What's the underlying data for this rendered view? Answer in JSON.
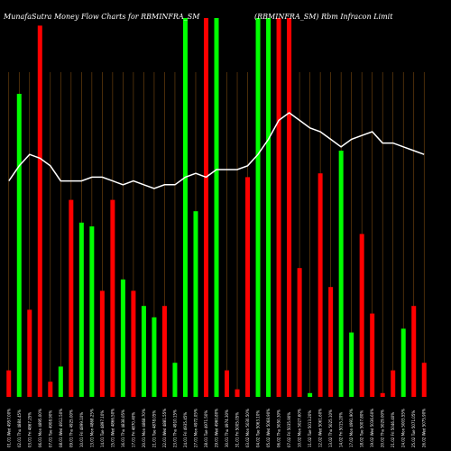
{
  "chart_data": {
    "type": "bar",
    "title": "MunafaSutra  Money Flow  Charts for RBMINFRA_SM",
    "subtitle": "(RBMINFRA_SM)  Rbm Infracon  Limit",
    "xlabel": "",
    "ylabel": "",
    "grid": true,
    "legend": "none",
    "colors": {
      "up": "#00ff00",
      "down": "#ff0000",
      "line": "#ffffff",
      "grid": "#7a4a10",
      "background": "#000000"
    },
    "ylim": [
      0,
      100
    ],
    "categories": [
      "01.01 Wed 4957.00%",
      "02.01 Thu 4884.45%",
      "03.01 Fri 4867.25%",
      "06.01 Mon 4895.00%",
      "07.01 Tue 4908.90%",
      "08.01 Wed 4912.50%",
      "09.01 Thu 4925.00%",
      "10.01 Fri 4899.10%",
      "13.01 Mon 4868.25%",
      "14.01 Tue 4897.10%",
      "15.01 Wed 4866.50%",
      "16.01 Thu 4838.05%",
      "17.01 Fri 4870.40%",
      "20.01 Mon 4868.70%",
      "21.01 Tue 4878.05%",
      "22.01 Wed 4881.55%",
      "23.01 Thu 4910.15%",
      "24.01 Fri 4935.45%",
      "27.01 Mon 4972.05%",
      "28.01 Tue 4971.50%",
      "29.01 Wed 4960.80%",
      "30.01 Thu 4974.30%",
      "31.01 Fri 5005.05%",
      "03.02 Mon 5030.50%",
      "04.02 Tue 5063.10%",
      "05.02 Wed 5068.90%",
      "06.02 Thu 5050.30%",
      "07.02 Fri 5035.90%",
      "10.02 Mon 5027.60%",
      "11.02 Tue 5013.20%",
      "12.02 Wed 5061.60%",
      "13.02 Thu 5025.10%",
      "14.02 Fri 5015.20%",
      "17.02 Mon 4991.90%",
      "18.02 Tue 5007.80%",
      "19.02 Wed 5036.60%",
      "20.02 Thu 5029.00%",
      "21.02 Fri 5046.40%",
      "24.02 Mon 5003.55%",
      "25.02 Tue 5071.05%",
      "26.02 Wed 5075.90%"
    ],
    "series": [
      {
        "values": [
          7,
          80,
          23,
          98,
          4,
          8,
          52,
          46,
          45,
          28,
          52,
          31,
          28,
          24,
          21,
          24,
          9,
          100,
          49,
          100,
          100,
          7,
          2,
          58,
          100,
          100,
          100,
          100,
          34,
          1,
          59,
          29,
          65,
          17,
          43,
          22,
          1,
          7,
          18,
          24,
          9
        ],
        "colors": [
          "down",
          "up",
          "down",
          "down",
          "down",
          "up",
          "down",
          "up",
          "up",
          "down",
          "down",
          "up",
          "down",
          "up",
          "up",
          "down",
          "up",
          "up",
          "up",
          "down",
          "up",
          "down",
          "down",
          "down",
          "up",
          "up",
          "down",
          "down",
          "down",
          "up",
          "down",
          "down",
          "up",
          "up",
          "down",
          "down",
          "down",
          "down",
          "up",
          "down",
          "down"
        ]
      },
      {
        "type": "line",
        "values": [
          57,
          61,
          64,
          63,
          61,
          57,
          57,
          57,
          58,
          58,
          57,
          56,
          57,
          56,
          55,
          56,
          56,
          58,
          59,
          58,
          60,
          60,
          60,
          61,
          64,
          68,
          73,
          75,
          73,
          71,
          70,
          68,
          66,
          68,
          69,
          70,
          67,
          67,
          66,
          65,
          64
        ]
      }
    ]
  }
}
